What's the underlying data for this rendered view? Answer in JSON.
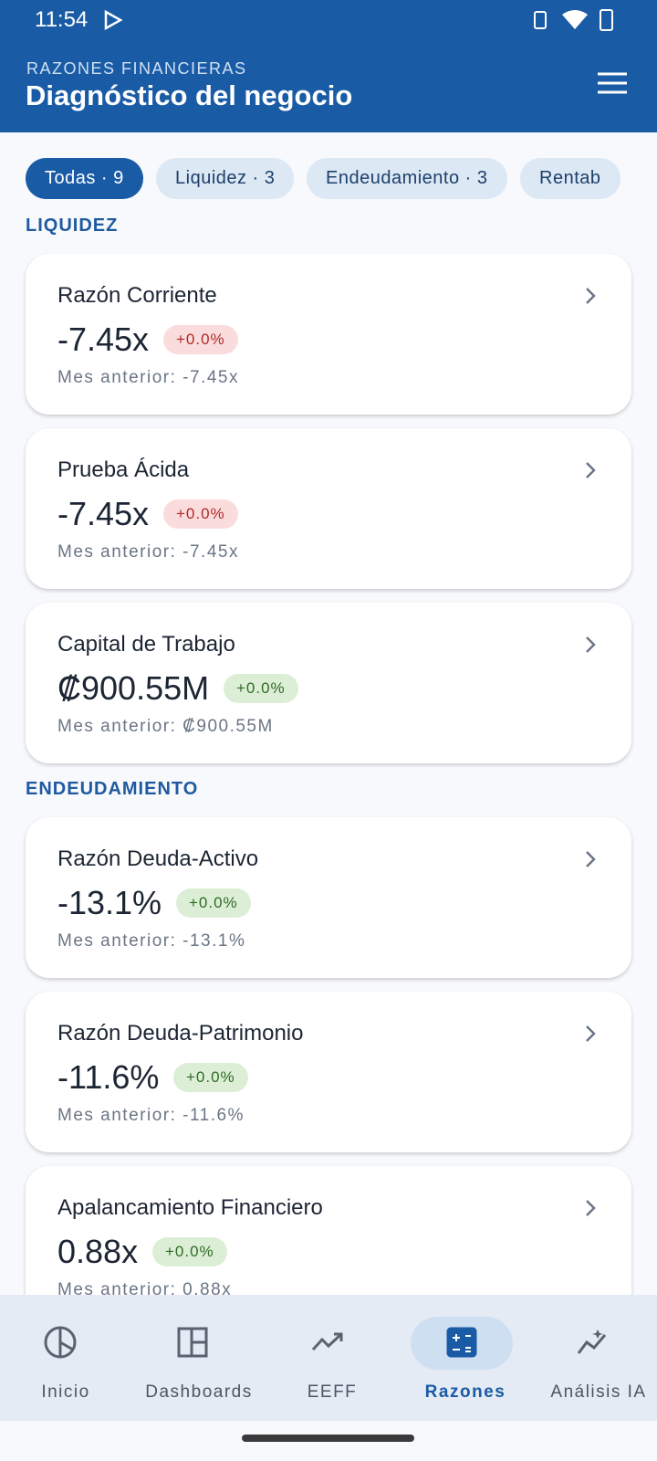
{
  "status_bar": {
    "time": "11:54"
  },
  "header": {
    "overline": "RAZONES FINANCIERAS",
    "title": "Diagnóstico del negocio"
  },
  "filters": [
    {
      "label": "Todas · 9",
      "active": true
    },
    {
      "label": "Liquidez · 3",
      "active": false
    },
    {
      "label": "Endeudamiento · 3",
      "active": false
    },
    {
      "label": "Rentab",
      "active": false
    }
  ],
  "sections": [
    {
      "title": "LIQUIDEZ",
      "cards": [
        {
          "name": "Razón Corriente",
          "value": "-7.45x",
          "change": "+0.0%",
          "tone": "bad",
          "previous": "Mes anterior: -7.45x"
        },
        {
          "name": "Prueba Ácida",
          "value": "-7.45x",
          "change": "+0.0%",
          "tone": "bad",
          "previous": "Mes anterior: -7.45x"
        },
        {
          "name": "Capital de Trabajo",
          "value": "₡900.55M",
          "change": "+0.0%",
          "tone": "good",
          "previous": "Mes anterior: ₡900.55M"
        }
      ]
    },
    {
      "title": "ENDEUDAMIENTO",
      "cards": [
        {
          "name": "Razón Deuda-Activo",
          "value": "-13.1%",
          "change": "+0.0%",
          "tone": "good",
          "previous": "Mes anterior: -13.1%"
        },
        {
          "name": "Razón Deuda-Patrimonio",
          "value": "-11.6%",
          "change": "+0.0%",
          "tone": "good",
          "previous": "Mes anterior: -11.6%"
        },
        {
          "name": "Apalancamiento Financiero",
          "value": "0.88x",
          "change": "+0.0%",
          "tone": "good",
          "previous": "Mes anterior: 0.88x"
        }
      ]
    }
  ],
  "nav": [
    {
      "label": "Inicio",
      "active": false
    },
    {
      "label": "Dashboards",
      "active": false
    },
    {
      "label": "EEFF",
      "active": false
    },
    {
      "label": "Razones",
      "active": true
    },
    {
      "label": "Análisis IA",
      "active": false
    }
  ]
}
